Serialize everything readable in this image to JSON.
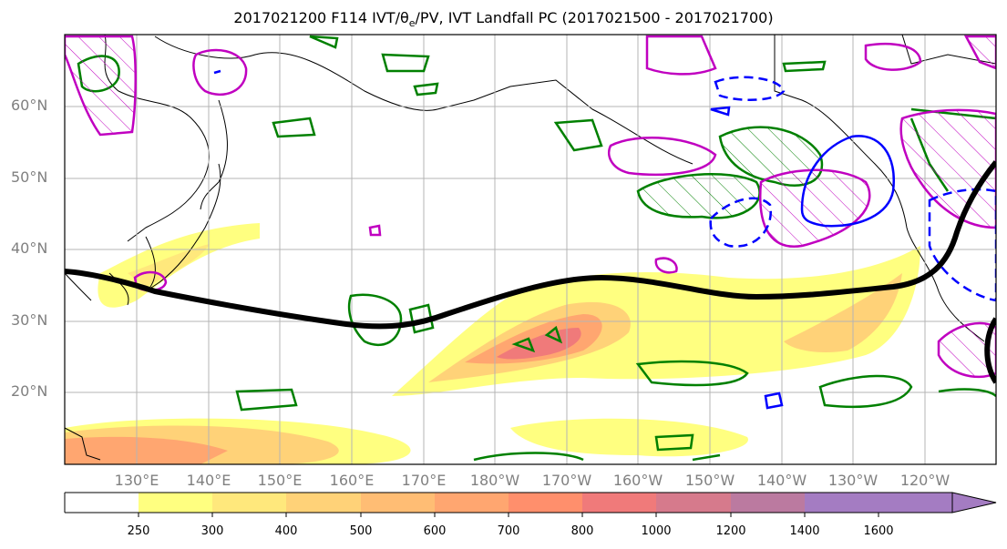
{
  "title_main": "2017021200 F114 IVT/θ",
  "title_sub": "e",
  "title_rest": "/PV, IVT Landfall PC (2017021500 - 2017021700)",
  "lat_labels": [
    "60°N",
    "50°N",
    "40°N",
    "30°N",
    "20°N"
  ],
  "lon_labels": [
    "130°E",
    "140°E",
    "150°E",
    "160°E",
    "170°E",
    "180°W",
    "170°W",
    "160°W",
    "150°W",
    "140°W",
    "130°W",
    "120°W"
  ],
  "colorbar": {
    "ticks": [
      "250",
      "300",
      "400",
      "500",
      "600",
      "700",
      "800",
      "1000",
      "1200",
      "1400",
      "1600"
    ],
    "colors": [
      "#ffff80",
      "#ffe87c",
      "#ffd278",
      "#ffbd74",
      "#ffa670",
      "#ff8f6c",
      "#f07a7a",
      "#d67a8c",
      "#bb7aa0",
      "#a47cc2"
    ]
  },
  "colors": {
    "ivt_contour": "#000000",
    "theta_e": "#008000",
    "pv_positive": "#c000c0",
    "pv_negative": "#0000ff"
  }
}
